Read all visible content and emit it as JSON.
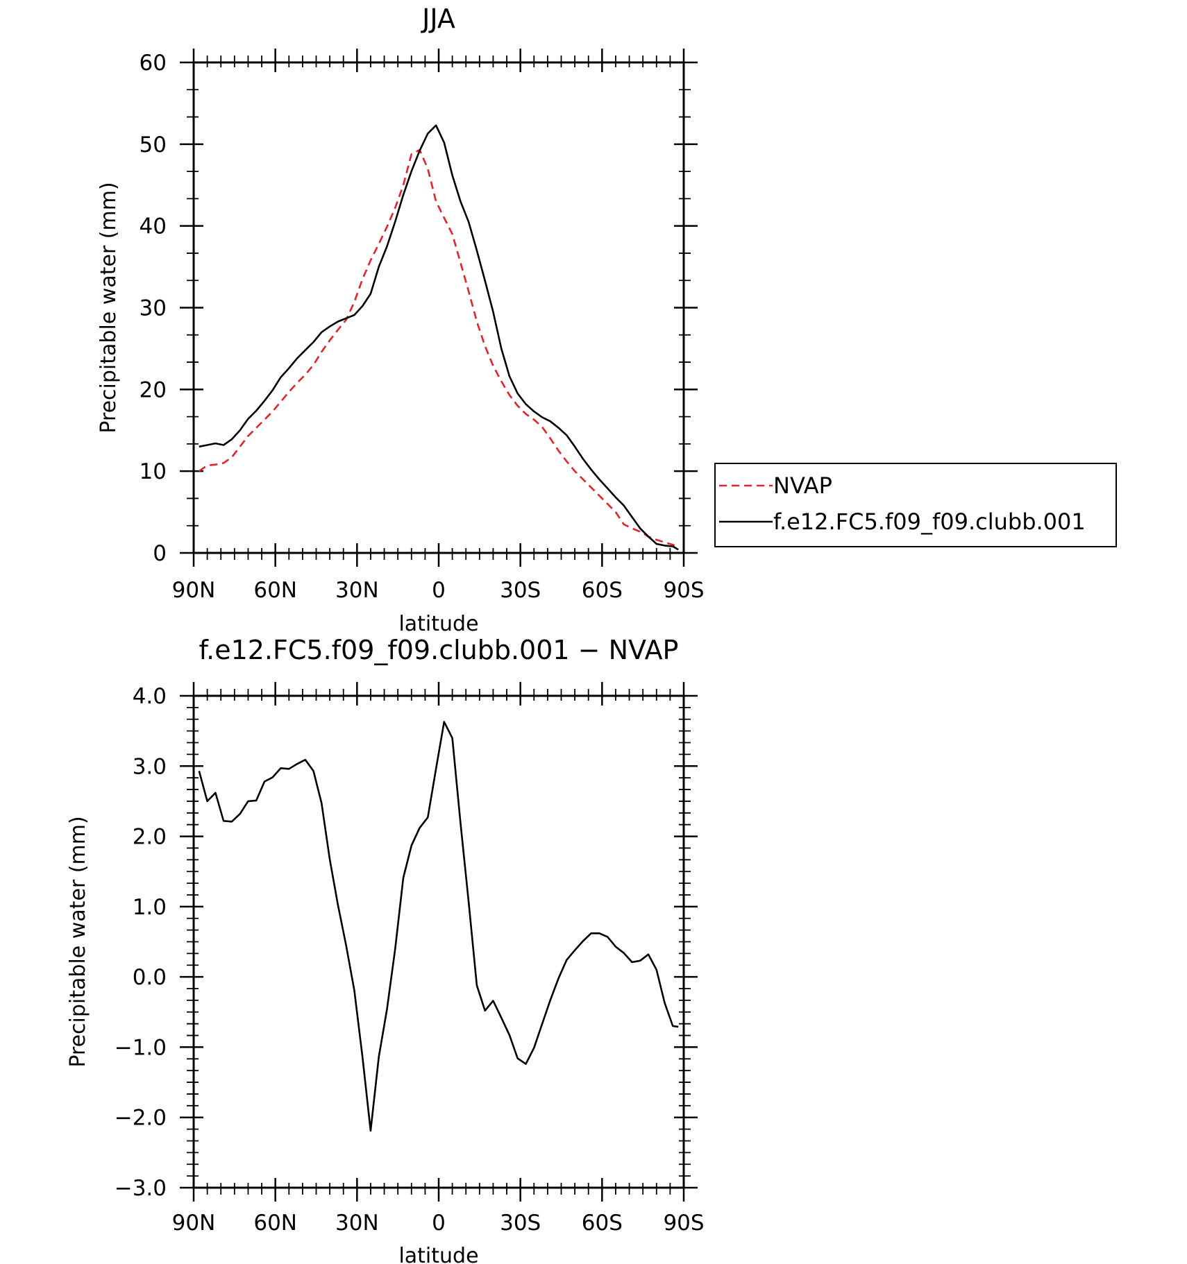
{
  "chart_data": [
    {
      "type": "line",
      "title": "JJA",
      "xlabel": "latitude",
      "ylabel": "Precipitable water (mm)",
      "xlim": [
        90,
        -90
      ],
      "ylim": [
        0,
        60
      ],
      "yticks": [
        0,
        10,
        20,
        30,
        40,
        50,
        60
      ],
      "yticklabels": [
        "0",
        "10",
        "20",
        "30",
        "40",
        "50",
        "60"
      ],
      "xticks": [
        90,
        60,
        30,
        0,
        -30,
        -60,
        -90
      ],
      "xticklabels": [
        "90N",
        "60N",
        "30N",
        "0",
        "30S",
        "60S",
        "90S"
      ],
      "legend_position": "right",
      "series": [
        {
          "name": "NVAP",
          "color": "#e8202a",
          "dash": "dashed",
          "x": [
            88,
            85,
            82,
            79,
            76,
            73,
            70,
            67,
            64,
            61,
            58,
            55,
            52,
            49,
            46,
            43,
            40,
            37,
            34,
            31,
            28,
            25,
            22,
            19,
            16,
            13,
            10,
            7,
            4,
            1,
            -2,
            -5,
            -8,
            -11,
            -14,
            -17,
            -20,
            -23,
            -26,
            -29,
            -32,
            -35,
            -38,
            -41,
            -44,
            -47,
            -50,
            -53,
            -56,
            -59,
            -62,
            -65,
            -68,
            -71,
            -74,
            -77,
            -80,
            -83,
            -86,
            -88
          ],
          "y": [
            10.0,
            10.7,
            10.8,
            11.0,
            11.7,
            13.0,
            14.3,
            15.3,
            16.3,
            17.3,
            18.5,
            19.7,
            20.8,
            21.8,
            23.0,
            24.6,
            26.0,
            27.3,
            28.5,
            30.7,
            33.5,
            35.8,
            37.8,
            39.9,
            42.2,
            45.0,
            48.8,
            49.3,
            47.0,
            43.0,
            41.0,
            39.0,
            35.5,
            32.0,
            28.3,
            25.3,
            22.9,
            21.0,
            19.3,
            18.0,
            17.0,
            16.3,
            15.4,
            14.0,
            12.5,
            11.2,
            10.0,
            9.0,
            8.0,
            7.0,
            6.0,
            5.0,
            3.5,
            3.0,
            2.6,
            2.0,
            1.6,
            1.3,
            1.0,
            0.7
          ]
        },
        {
          "name": "f.e12.FC5.f09_f09.clubb.001",
          "color": "#000000",
          "dash": "solid",
          "x": [
            88,
            85,
            82,
            79,
            76,
            73,
            70,
            67,
            64,
            61,
            58,
            55,
            52,
            49,
            46,
            43,
            40,
            37,
            34,
            31,
            28,
            25,
            22,
            19,
            16,
            13,
            10,
            7,
            4,
            1,
            -2,
            -5,
            -8,
            -11,
            -14,
            -17,
            -20,
            -23,
            -26,
            -29,
            -32,
            -35,
            -38,
            -41,
            -44,
            -47,
            -50,
            -53,
            -56,
            -59,
            -62,
            -65,
            -68,
            -71,
            -74,
            -77,
            -80,
            -83,
            -86,
            -88
          ],
          "y": [
            13.0,
            13.2,
            13.4,
            13.2,
            13.9,
            15.0,
            16.4,
            17.4,
            18.6,
            19.9,
            21.5,
            22.6,
            23.8,
            24.8,
            25.8,
            27.0,
            27.7,
            28.3,
            28.7,
            29.1,
            30.2,
            31.7,
            35.0,
            37.5,
            40.5,
            43.8,
            46.7,
            49.2,
            51.3,
            52.3,
            50.2,
            46.2,
            43.0,
            40.5,
            37.0,
            33.3,
            29.5,
            25.0,
            21.6,
            19.5,
            18.2,
            17.3,
            16.6,
            16.1,
            15.3,
            14.4,
            13.0,
            11.5,
            10.2,
            9.0,
            7.9,
            6.8,
            5.8,
            4.4,
            3.0,
            2.0,
            1.1,
            0.9,
            0.8,
            0.4
          ]
        }
      ]
    },
    {
      "type": "line",
      "title": "f.e12.FC5.f09_f09.clubb.001 − NVAP",
      "xlabel": "latitude",
      "ylabel": "Precipitable water (mm)",
      "xlim": [
        90,
        -90
      ],
      "ylim": [
        -3.0,
        4.0
      ],
      "yticks": [
        -3,
        -2,
        -1,
        0,
        1,
        2,
        3,
        4
      ],
      "yticklabels": [
        "−3.0",
        "−2.0",
        "−1.0",
        "0.0",
        "1.0",
        "2.0",
        "3.0",
        "4.0"
      ],
      "xticks": [
        90,
        60,
        30,
        0,
        -30,
        -60,
        -90
      ],
      "xticklabels": [
        "90N",
        "60N",
        "30N",
        "0",
        "30S",
        "60S",
        "90S"
      ],
      "series": [
        {
          "color": "#000000",
          "dash": "solid",
          "x": [
            88,
            85,
            82,
            79,
            76,
            73,
            70,
            67,
            64,
            61,
            58,
            55,
            52,
            49,
            46,
            43,
            40,
            37,
            34,
            31,
            28,
            25,
            22,
            19,
            16,
            13,
            10,
            7,
            4,
            1,
            -2,
            -5,
            -8,
            -11,
            -14,
            -17,
            -20,
            -23,
            -26,
            -29,
            -32,
            -35,
            -38,
            -41,
            -44,
            -47,
            -50,
            -53,
            -56,
            -59,
            -62,
            -65,
            -68,
            -71,
            -74,
            -77,
            -80,
            -83,
            -86,
            -88
          ],
          "y": [
            2.93,
            2.5,
            2.62,
            2.22,
            2.21,
            2.32,
            2.5,
            2.51,
            2.78,
            2.84,
            2.97,
            2.96,
            3.03,
            3.09,
            2.93,
            2.47,
            1.67,
            1.02,
            0.45,
            -0.19,
            -1.14,
            -2.19,
            -1.14,
            -0.46,
            0.39,
            1.41,
            1.87,
            2.12,
            2.27,
            2.96,
            3.63,
            3.4,
            2.19,
            1.07,
            -0.12,
            -0.48,
            -0.34,
            -0.58,
            -0.83,
            -1.16,
            -1.24,
            -1.01,
            -0.67,
            -0.33,
            -0.02,
            0.24,
            0.38,
            0.51,
            0.62,
            0.62,
            0.57,
            0.43,
            0.34,
            0.21,
            0.23,
            0.32,
            0.1,
            -0.37,
            -0.7,
            -0.71
          ]
        }
      ]
    }
  ]
}
